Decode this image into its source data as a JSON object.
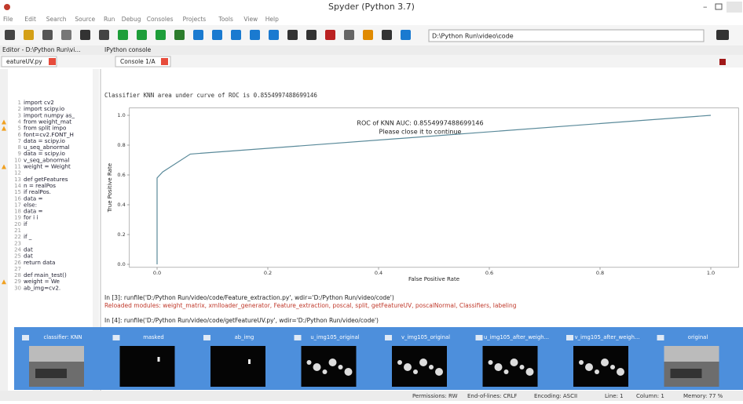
{
  "window": {
    "title": "Spyder (Python 3.7)"
  },
  "menu": [
    "File",
    "Edit",
    "Search",
    "Source",
    "Run",
    "Debug",
    "Consoles",
    "Projects",
    "Tools",
    "View",
    "Help"
  ],
  "toolbar": {
    "path": "D:\\Python Run\\video\\code"
  },
  "editor": {
    "pane_title": "Editor - D:\\Python Run\\vi...",
    "tab": "eatureUV.py",
    "lines": [
      {
        "num": "1",
        "code": "import cv2"
      },
      {
        "num": "2",
        "code": "import scipy.io"
      },
      {
        "num": "3",
        "code": "import numpy as_"
      },
      {
        "num": "4",
        "code": "from weight_mat"
      },
      {
        "num": "5",
        "code": "from split impo"
      },
      {
        "num": "6",
        "code": "font=cv2.FONT_H"
      },
      {
        "num": "7",
        "code": "data = scipy.io"
      },
      {
        "num": "8",
        "code": "u_seq_abnormal"
      },
      {
        "num": "9",
        "code": "data = scipy.io"
      },
      {
        "num": "10",
        "code": "v_seq_abnormal"
      },
      {
        "num": "11",
        "code": "weight = Weight"
      },
      {
        "num": "12"
      },
      {
        "num": "13",
        "code": "def getFeatures"
      },
      {
        "num": "14",
        "code": "    n = realPos"
      },
      {
        "num": "15",
        "code": "    if realPos."
      },
      {
        "num": "16",
        "code": "        data ="
      },
      {
        "num": "17",
        "code": "    else:"
      },
      {
        "num": "18",
        "code": "        data ="
      },
      {
        "num": "19",
        "code": "        for i i"
      },
      {
        "num": "20",
        "code": "            if"
      },
      {
        "num": "21"
      },
      {
        "num": "22",
        "code": "            if _"
      },
      {
        "num": "23"
      },
      {
        "num": "24",
        "code": "            dat"
      },
      {
        "num": "25",
        "code": "            dat"
      },
      {
        "num": "26",
        "code": "    return data"
      },
      {
        "num": "27"
      },
      {
        "num": "28",
        "code": "def main_test()"
      },
      {
        "num": "29",
        "code": "    weight = We"
      },
      {
        "num": "30",
        "code": "    ab_img=cv2."
      }
    ]
  },
  "console": {
    "pane_title": "IPython console",
    "tab": "Console 1/A",
    "top_line": "Classifier KNN area under curve of ROC is 0.8554997488699146",
    "lines": [
      "In [3]: runfile('D:/Python Run/video/code/Feature_extraction.py', wdir='D:/Python Run/video/code')",
      "Reloaded modules: weight_matrix, xmlloader_generator, Feature_extraction, poscal, split, getFeatureUV, poscalNormal, Classifiers, labeling",
      "In [4]: runfile('D:/Python Run/video/code/getFeatureUV.py', wdir='D:/Python Run/video/code')"
    ]
  },
  "chart_data": {
    "type": "line",
    "title": "ROC of KNN    AUC: 0.8554997488699146",
    "subtitle": "Please close it to continue",
    "xlabel": "False Positive Rate",
    "ylabel": "True Positive Rate",
    "x": [
      0,
      0,
      0.01,
      0.06,
      1
    ],
    "values": [
      0,
      0.58,
      0.62,
      0.74,
      1
    ],
    "color": "#5a8a9a",
    "xlim": [
      -0.05,
      1.05
    ],
    "ylim": [
      -0.02,
      1.05
    ],
    "xticks": [
      {
        "value": 0,
        "label": "0.0"
      },
      0.2,
      0.4,
      0.6,
      0.8,
      {
        "value": 1,
        "label": "1.0"
      }
    ],
    "yticks": [
      {
        "value": 0,
        "label": "0.0"
      },
      0.2,
      0.4,
      0.6,
      0.8,
      {
        "value": 1,
        "label": "1.0"
      }
    ]
  },
  "thumbnails": [
    "classifier: KNN",
    "masked",
    "ab_img",
    "u_img105_original",
    "v_img105_original",
    "u_img105_after_weigh...",
    "v_img105_after_weigh...",
    "original"
  ],
  "status": [
    "Permissions: RW",
    "End-of-lines: CRLF",
    "Encoding: ASCII",
    "Line: 1",
    "Column: 1",
    "Memory: 77 %"
  ]
}
